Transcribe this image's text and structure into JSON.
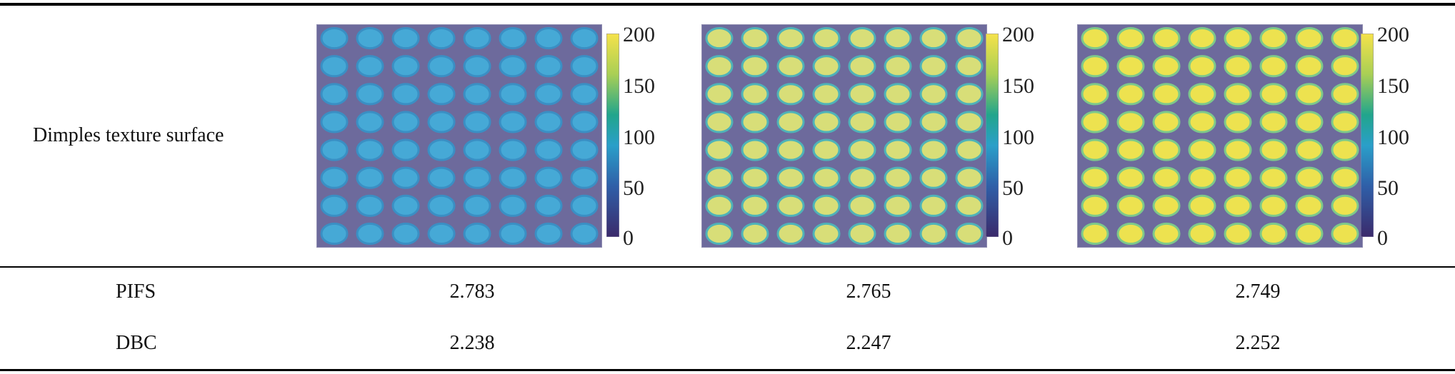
{
  "table": {
    "header_row_label": "Dimples texture surface",
    "rows": [
      {
        "label": "PIFS",
        "values": [
          "2.783",
          "2.765",
          "2.749"
        ]
      },
      {
        "label": "DBC",
        "values": [
          "2.238",
          "2.247",
          "2.252"
        ]
      }
    ]
  },
  "figures": {
    "colorbar_ticks": [
      "200",
      "150",
      "100",
      "50",
      "0"
    ],
    "colorbar_range": [
      0,
      200
    ],
    "grid": {
      "rows": 8,
      "cols": 8
    },
    "panels": [
      {
        "background_color": "#6d6a9c",
        "dimple_color": "#46a9d6",
        "dimple_edge_color": "#3a8fc4"
      },
      {
        "background_color": "#6d6a9c",
        "dimple_color": "#d8de78",
        "dimple_edge_color": "#4fb3b8"
      },
      {
        "background_color": "#6d6a9c",
        "dimple_color": "#ede24f",
        "dimple_edge_color": "#7dc98a"
      }
    ]
  }
}
